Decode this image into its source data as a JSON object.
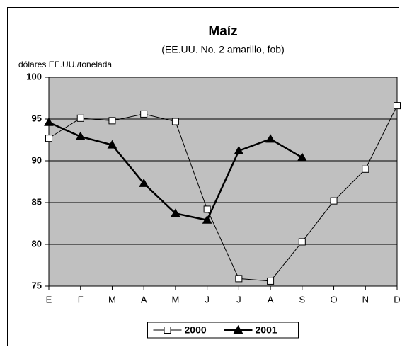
{
  "chart_data": {
    "type": "line",
    "title": "Maíz",
    "subtitle": "(EE.UU. No. 2 amarillo, fob)",
    "y_label": "dólares EE.UU./tonelada",
    "categories": [
      "E",
      "F",
      "M",
      "A",
      "M",
      "J",
      "J",
      "A",
      "S",
      "O",
      "N",
      "D"
    ],
    "series": [
      {
        "name": "2000",
        "color": "#000000",
        "marker": "square",
        "line_width": 1,
        "values": [
          92.7,
          95.1,
          94.8,
          95.6,
          94.7,
          84.2,
          75.9,
          75.6,
          80.3,
          85.2,
          89.0,
          96.6
        ]
      },
      {
        "name": "2001",
        "color": "#000000",
        "marker": "triangle",
        "line_width": 2.5,
        "values": [
          94.6,
          92.9,
          91.9,
          87.3,
          83.7,
          82.9,
          91.2,
          92.6,
          90.4,
          null,
          null,
          null
        ]
      }
    ],
    "ylim": [
      75,
      100
    ],
    "yticks": [
      75,
      80,
      85,
      90,
      95,
      100
    ],
    "grid": true,
    "plot_background": "#c0c0c0",
    "legend": "bottom"
  }
}
